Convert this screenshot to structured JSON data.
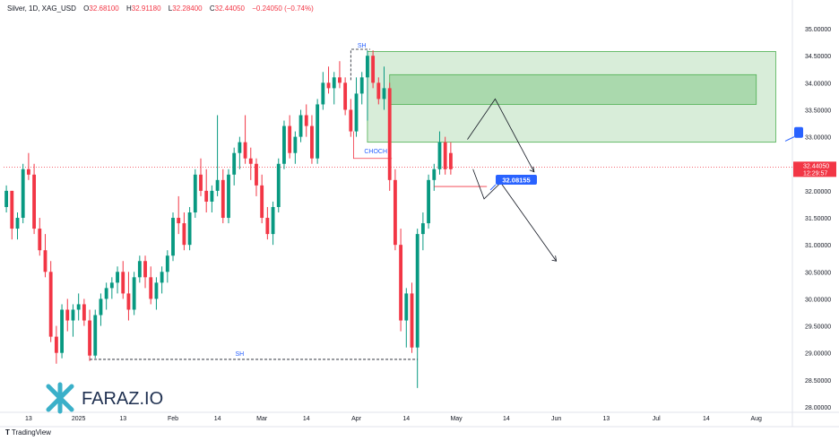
{
  "header": {
    "symbol": "Silver, 1D, XAG_USD",
    "open_label": "O",
    "open": "32.68100",
    "high_label": "H",
    "high": "32.91180",
    "low_label": "L",
    "low": "32.28400",
    "close_label": "C",
    "close": "32.44050",
    "change": "−0.24050 (−0.74%)"
  },
  "branding": {
    "logo_text": "FARAZ.IO",
    "footer": "TradingView"
  },
  "colors": {
    "up": "#089981",
    "down": "#f23645",
    "zone": "#4caf50",
    "label_blue": "#2962ff",
    "axis_text": "#131722"
  },
  "chart_data": {
    "type": "candlestick",
    "title": "Silver, 1D, XAG_USD",
    "ylim": [
      27.9,
      35.3
    ],
    "y_ticks": [
      28.0,
      28.5,
      29.0,
      29.5,
      30.0,
      30.5,
      31.0,
      31.5,
      32.0,
      32.5,
      33.0,
      33.5,
      34.0,
      34.5,
      35.0
    ],
    "y_tick_labels": [
      "28.00000",
      "28.50000",
      "29.00000",
      "29.50000",
      "30.00000",
      "30.50000",
      "31.00000",
      "31.50000",
      "32.00000",
      "32.50000",
      "33.00000",
      "33.50000",
      "34.00000",
      "34.50000",
      "35.00000"
    ],
    "x_tick_labels": [
      {
        "i": 4,
        "label": "13"
      },
      {
        "i": 13,
        "label": "2025"
      },
      {
        "i": 21,
        "label": "13"
      },
      {
        "i": 30,
        "label": "Feb"
      },
      {
        "i": 38,
        "label": "14"
      },
      {
        "i": 46,
        "label": "Mar"
      },
      {
        "i": 54,
        "label": "14"
      },
      {
        "i": 63,
        "label": "Apr"
      },
      {
        "i": 72,
        "label": "14"
      },
      {
        "i": 81,
        "label": "May"
      },
      {
        "i": 90,
        "label": "14"
      },
      {
        "i": 99,
        "label": "Jun"
      },
      {
        "i": 108,
        "label": "13"
      },
      {
        "i": 117,
        "label": "Jul"
      },
      {
        "i": 126,
        "label": "14"
      },
      {
        "i": 135,
        "label": "Aug"
      }
    ],
    "x_range": [
      -0.5,
      141.5
    ],
    "candles": [
      [
        31.7,
        32.1,
        31.6,
        32.0
      ],
      [
        32.0,
        32.0,
        31.1,
        31.3
      ],
      [
        31.3,
        31.6,
        31.1,
        31.5
      ],
      [
        31.5,
        32.5,
        31.4,
        32.4
      ],
      [
        32.4,
        32.7,
        32.2,
        32.3
      ],
      [
        32.3,
        32.5,
        31.2,
        31.3
      ],
      [
        31.3,
        31.5,
        30.8,
        30.9
      ],
      [
        30.9,
        31.2,
        30.4,
        30.5
      ],
      [
        30.5,
        30.7,
        29.2,
        29.3
      ],
      [
        29.3,
        29.5,
        28.8,
        29.0
      ],
      [
        29.0,
        29.9,
        28.9,
        29.8
      ],
      [
        29.8,
        30.0,
        29.4,
        29.6
      ],
      [
        29.6,
        29.9,
        29.3,
        29.8
      ],
      [
        29.8,
        30.1,
        29.6,
        29.9
      ],
      [
        29.9,
        30.0,
        29.5,
        29.6
      ],
      [
        29.6,
        29.8,
        28.85,
        28.95
      ],
      [
        28.95,
        29.8,
        28.9,
        29.7
      ],
      [
        29.7,
        30.1,
        29.5,
        30.0
      ],
      [
        30.0,
        30.3,
        29.8,
        30.2
      ],
      [
        30.2,
        30.4,
        30.0,
        30.3
      ],
      [
        30.3,
        30.6,
        30.1,
        30.5
      ],
      [
        30.5,
        30.7,
        30.0,
        30.1
      ],
      [
        30.1,
        30.5,
        29.6,
        29.8
      ],
      [
        29.8,
        30.5,
        29.7,
        30.4
      ],
      [
        30.4,
        30.8,
        30.3,
        30.7
      ],
      [
        30.7,
        30.8,
        30.2,
        30.4
      ],
      [
        30.4,
        30.6,
        29.9,
        30.0
      ],
      [
        30.0,
        30.4,
        29.8,
        30.3
      ],
      [
        30.3,
        30.6,
        30.1,
        30.5
      ],
      [
        30.5,
        30.9,
        30.3,
        30.8
      ],
      [
        30.8,
        31.6,
        30.7,
        31.5
      ],
      [
        31.5,
        31.9,
        31.2,
        31.4
      ],
      [
        31.4,
        31.6,
        30.9,
        31.0
      ],
      [
        31.0,
        31.7,
        30.9,
        31.6
      ],
      [
        31.6,
        32.4,
        31.5,
        32.3
      ],
      [
        32.3,
        32.6,
        31.9,
        32.0
      ],
      [
        32.0,
        32.4,
        31.6,
        31.8
      ],
      [
        31.8,
        32.1,
        31.6,
        32.0
      ],
      [
        32.0,
        33.4,
        31.9,
        32.2
      ],
      [
        32.2,
        32.4,
        31.4,
        31.5
      ],
      [
        31.5,
        32.4,
        31.4,
        32.3
      ],
      [
        32.3,
        32.8,
        32.1,
        32.7
      ],
      [
        32.7,
        33.0,
        32.4,
        32.9
      ],
      [
        32.9,
        33.4,
        32.5,
        32.6
      ],
      [
        32.6,
        32.8,
        32.2,
        32.5
      ],
      [
        32.5,
        32.6,
        31.9,
        32.1
      ],
      [
        32.1,
        32.3,
        31.4,
        31.5
      ],
      [
        31.5,
        31.7,
        31.1,
        31.2
      ],
      [
        31.2,
        31.8,
        31.0,
        31.7
      ],
      [
        31.7,
        32.6,
        31.6,
        32.5
      ],
      [
        32.5,
        33.3,
        32.4,
        33.2
      ],
      [
        33.2,
        33.4,
        32.6,
        32.7
      ],
      [
        32.7,
        33.1,
        32.5,
        33.0
      ],
      [
        33.0,
        33.5,
        32.9,
        33.4
      ],
      [
        33.4,
        33.6,
        33.0,
        33.2
      ],
      [
        33.2,
        33.4,
        32.5,
        32.6
      ],
      [
        32.6,
        33.7,
        32.5,
        33.6
      ],
      [
        33.6,
        34.2,
        33.5,
        34.0
      ],
      [
        34.0,
        34.3,
        33.8,
        33.9
      ],
      [
        33.9,
        34.2,
        33.6,
        34.1
      ],
      [
        34.1,
        34.4,
        33.9,
        34.0
      ],
      [
        34.0,
        34.1,
        33.4,
        33.5
      ],
      [
        33.5,
        33.7,
        33.0,
        33.1
      ],
      [
        33.1,
        34.1,
        33.0,
        33.8
      ],
      [
        33.8,
        34.2,
        33.6,
        34.1
      ],
      [
        34.1,
        34.6,
        33.3,
        34.5
      ],
      [
        34.5,
        34.6,
        33.9,
        34.0
      ],
      [
        34.0,
        34.1,
        33.6,
        33.7
      ],
      [
        33.7,
        34.3,
        33.5,
        33.9
      ],
      [
        33.9,
        34.0,
        32.0,
        32.2
      ],
      [
        32.2,
        32.4,
        30.9,
        31.0
      ],
      [
        31.0,
        31.3,
        29.4,
        29.6
      ],
      [
        29.6,
        30.2,
        29.1,
        30.1
      ],
      [
        30.1,
        30.3,
        29.0,
        29.1
      ],
      [
        29.1,
        31.3,
        28.35,
        31.2
      ],
      [
        31.2,
        31.6,
        30.9,
        31.4
      ],
      [
        31.4,
        32.3,
        31.3,
        32.2
      ],
      [
        32.2,
        32.5,
        32.0,
        32.4
      ],
      [
        32.4,
        33.1,
        32.3,
        32.9
      ],
      [
        32.9,
        33.0,
        32.3,
        32.4
      ],
      [
        32.7,
        32.9,
        32.3,
        32.4
      ]
    ],
    "zones": [
      {
        "from_i": 65,
        "to_i": 138.5,
        "y0": 32.9,
        "y1": 34.58
      },
      {
        "from_i": 69,
        "to_i": 135,
        "y0": 33.6,
        "y1": 34.15
      }
    ],
    "markers": [
      {
        "name": "sh-top",
        "label": "SH",
        "i": 64,
        "y": 34.62
      },
      {
        "name": "choch",
        "label": "CHOCH",
        "i": 66.5,
        "y": 32.9
      },
      {
        "name": "sh-bottom",
        "label": "SH",
        "i": 42,
        "y": 28.88
      }
    ],
    "last_price": {
      "value": 32.4405,
      "label": "32.44050",
      "countdown": "12:29:57"
    },
    "price_label": {
      "value": 32.08155,
      "label": "32.08155"
    }
  }
}
